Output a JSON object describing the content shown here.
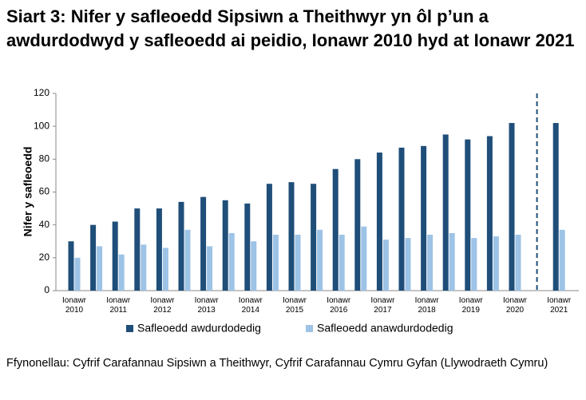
{
  "chart_data": {
    "type": "bar",
    "title": "Siart 3: Nifer y safleoedd Sipsiwn a Theithwyr yn ôl p’un a awdurdodwyd y safleoedd ai peidio, Ionawr 2010 hyd at Ionawr 2021",
    "y_label": "Nifer y safleoedd",
    "source": "Ffynonellau: Cyfrif Carafannau Sipsiwn a Theithwyr, Cyfrif Carafannau Cymru Gyfan (Llywodraeth Cymru)",
    "categories": [
      "Ionawr 2010",
      null,
      "Ionawr 2011",
      null,
      "Ionawr 2012",
      null,
      "Ionawr 2013",
      null,
      "Ionawr 2014",
      null,
      "Ionawr 2015",
      null,
      "Ionawr 2016",
      null,
      "Ionawr 2017",
      null,
      "Ionawr 2018",
      null,
      "Ionawr 2019",
      null,
      "Ionawr 2020",
      "Ionawr 2021"
    ],
    "series": [
      {
        "name": "Safleoedd awdurdodedig",
        "color": "#1f4e79",
        "values": [
          30,
          40,
          42,
          50,
          50,
          54,
          57,
          55,
          53,
          65,
          66,
          65,
          74,
          80,
          84,
          87,
          88,
          95,
          92,
          94,
          102,
          102
        ]
      },
      {
        "name": "Safleoedd anawdurdodedig",
        "color": "#9dc3e6",
        "values": [
          20,
          27,
          22,
          28,
          26,
          37,
          27,
          35,
          30,
          34,
          34,
          37,
          34,
          39,
          31,
          32,
          34,
          35,
          32,
          33,
          34,
          37
        ]
      }
    ],
    "ylim": [
      0,
      120
    ],
    "yticks": [
      0,
      20,
      40,
      60,
      80,
      100,
      120
    ],
    "grid": false
  }
}
